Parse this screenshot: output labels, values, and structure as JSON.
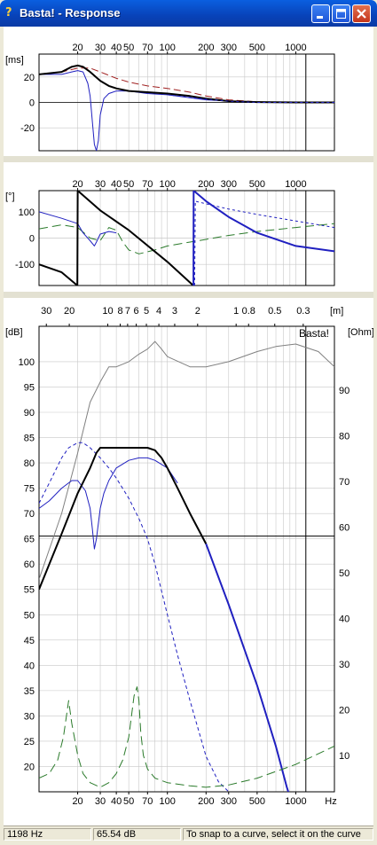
{
  "window": {
    "title": "Basta! - Response",
    "app_icon": "question-mark-icon"
  },
  "title_buttons": [
    "minimize-icon",
    "maximize-icon",
    "close-icon"
  ],
  "status": {
    "frequency": "1198 Hz",
    "level": "65.54 dB",
    "hint": "To snap to a curve, select it on the curve"
  },
  "chart_data": [
    {
      "type": "line",
      "ylabel": "[ms]",
      "xscale": "log",
      "xlim": [
        10,
        2000
      ],
      "ylim": [
        -38,
        38
      ],
      "x_ticks": [
        20,
        30,
        40,
        50,
        70,
        100,
        200,
        300,
        500,
        1000
      ],
      "y_ticks": [
        20,
        0,
        -20
      ],
      "grid": true,
      "series": [
        {
          "color": "#a02020",
          "dash": "8,4",
          "width": 1,
          "x": [
            10,
            15,
            20,
            25,
            30,
            40,
            50,
            70,
            100,
            150,
            200,
            300,
            500,
            1000,
            2000
          ],
          "y": [
            22,
            24,
            27,
            27,
            24,
            19,
            16,
            13,
            11,
            8,
            5,
            2,
            0.5,
            0,
            0
          ]
        },
        {
          "color": "#2020c0",
          "dash": "",
          "width": 1,
          "x": [
            10,
            15,
            18,
            20,
            22,
            24,
            25,
            26,
            27,
            28,
            29,
            30,
            32,
            35,
            40,
            50,
            70,
            100,
            200,
            500,
            2000
          ],
          "y": [
            22,
            22,
            24,
            25,
            24,
            15,
            5,
            -15,
            -33,
            -38,
            -30,
            -10,
            3,
            7,
            9,
            9,
            7,
            6,
            2,
            0,
            0
          ]
        },
        {
          "color": "#000000",
          "dash": "",
          "width": 2,
          "x": [
            10,
            15,
            18,
            20,
            22,
            25,
            30,
            35,
            40,
            50,
            70,
            100,
            150,
            200,
            300,
            500,
            1000,
            2000
          ],
          "y": [
            22,
            24,
            28,
            29,
            28,
            24,
            17,
            13,
            11,
            9,
            8,
            7,
            5,
            3,
            1,
            0.3,
            0,
            0
          ]
        },
        {
          "color": "#2020c0",
          "dash": "3,3",
          "width": 1,
          "x": [
            100,
            150,
            200,
            300,
            500,
            1000,
            2000
          ],
          "y": [
            6,
            4,
            2.5,
            1,
            0,
            0,
            0
          ]
        }
      ]
    },
    {
      "type": "line",
      "ylabel": "[°]",
      "xscale": "log",
      "xlim": [
        10,
        2000
      ],
      "ylim": [
        -180,
        180
      ],
      "x_ticks": [
        20,
        30,
        40,
        50,
        70,
        100,
        200,
        300,
        500,
        1000
      ],
      "y_ticks": [
        100,
        0,
        -100
      ],
      "grid": true,
      "series": [
        {
          "color": "#2a7a2a",
          "dash": "10,5",
          "width": 1,
          "x": [
            10,
            15,
            20,
            25,
            30,
            35,
            40,
            45,
            50,
            60,
            80,
            100,
            150,
            200,
            300,
            500,
            1000,
            2000
          ],
          "y": [
            35,
            50,
            40,
            0,
            -10,
            40,
            30,
            -15,
            -45,
            -60,
            -45,
            -30,
            -15,
            -5,
            10,
            25,
            40,
            55
          ]
        },
        {
          "color": "#2020c0",
          "dash": "",
          "width": 1,
          "x": [
            10,
            15,
            20,
            22,
            25,
            27,
            28,
            30,
            35,
            40
          ],
          "y": [
            100,
            75,
            55,
            20,
            -10,
            -30,
            -15,
            15,
            25,
            20
          ]
        },
        {
          "color": "#000000",
          "dash": "",
          "width": 2,
          "x": [
            10,
            15,
            19.9,
            20,
            30,
            50,
            100,
            159
          ],
          "y": [
            -100,
            -130,
            -180,
            180,
            105,
            30,
            -90,
            -180
          ]
        },
        {
          "color": "#2020c0",
          "dash": "",
          "width": 2,
          "x": [
            159.5,
            160,
            200,
            300,
            500,
            1000,
            2000
          ],
          "y": [
            -180,
            180,
            140,
            80,
            20,
            -30,
            -50
          ]
        },
        {
          "color": "#2020c0",
          "dash": "3,3",
          "width": 1,
          "x": [
            163,
            165,
            200,
            300,
            500,
            1000,
            2000
          ],
          "y": [
            -180,
            140,
            130,
            110,
            90,
            65,
            40
          ]
        }
      ]
    },
    {
      "type": "line",
      "ylabel": "[dB]",
      "y2label": "[Ohm]",
      "x2label": "[m]",
      "xlabel": "Hz",
      "watermark": "Basta!",
      "xscale": "log",
      "xlim": [
        10,
        2000
      ],
      "ylim": [
        15,
        107
      ],
      "y2lim": [
        2,
        104
      ],
      "x_ticks": [
        20,
        30,
        40,
        50,
        70,
        100,
        200,
        300,
        500,
        1000
      ],
      "top_ticks": [
        {
          "label": "30",
          "hz": 11.4
        },
        {
          "label": "20",
          "hz": 17.2
        },
        {
          "label": "10",
          "hz": 34.3
        },
        {
          "label": "8",
          "hz": 42.9
        },
        {
          "label": "7",
          "hz": 49
        },
        {
          "label": "6",
          "hz": 57.2
        },
        {
          "label": "5",
          "hz": 68.6
        },
        {
          "label": "4",
          "hz": 85.8
        },
        {
          "label": "3",
          "hz": 114
        },
        {
          "label": "2",
          "hz": 172
        },
        {
          "label": "1",
          "hz": 343
        },
        {
          "label": "0.8",
          "hz": 429
        },
        {
          "label": "0.5",
          "hz": 686
        },
        {
          "label": "0.3",
          "hz": 1143
        }
      ],
      "y_ticks": [
        100,
        95,
        90,
        85,
        80,
        75,
        70,
        65,
        60,
        55,
        50,
        45,
        40,
        35,
        30,
        25,
        20
      ],
      "y2_ticks": [
        90,
        80,
        70,
        60,
        50,
        40,
        30,
        20,
        10
      ],
      "grid": true,
      "markers": {
        "vline_hz": 1198,
        "hline_db": 65.54
      },
      "series": [
        {
          "color": "#808080",
          "dash": "",
          "width": 1,
          "axis": "left",
          "x": [
            10,
            15,
            20,
            25,
            30,
            35,
            40,
            50,
            60,
            70,
            80,
            90,
            100,
            150,
            200,
            300,
            500,
            700,
            1000,
            1500,
            2000
          ],
          "y": [
            57,
            70,
            82,
            92,
            96,
            99,
            99,
            100,
            101.5,
            102.5,
            104,
            102.5,
            101,
            99,
            99,
            100,
            102,
            103,
            103.5,
            102,
            99
          ]
        },
        {
          "color": "#2020c0",
          "dash": "4,3",
          "width": 1,
          "axis": "left",
          "x": [
            10,
            12,
            15,
            17,
            20,
            22,
            25,
            30,
            35,
            40,
            50,
            60,
            70,
            80,
            100,
            120,
            150,
            200,
            250,
            300
          ],
          "y": [
            72,
            76,
            81,
            83,
            84,
            84,
            83,
            81,
            79,
            77,
            73,
            69,
            65,
            60,
            50,
            42,
            33,
            22,
            17,
            15
          ]
        },
        {
          "color": "#2020c0",
          "dash": "",
          "width": 1,
          "axis": "left",
          "x": [
            10,
            12,
            15,
            18,
            20,
            23,
            25,
            26,
            27,
            28,
            30,
            32,
            35,
            40,
            50,
            60,
            70,
            80,
            100,
            120
          ],
          "y": [
            71,
            72.5,
            75,
            76.5,
            76.5,
            74.5,
            71,
            67,
            63,
            65,
            71,
            74,
            76.5,
            79,
            80.5,
            81,
            81,
            80.5,
            79,
            76
          ]
        },
        {
          "color": "#000000",
          "dash": "",
          "width": 2,
          "axis": "left",
          "x": [
            10,
            15,
            20,
            25,
            28,
            30,
            40,
            50,
            60,
            70,
            80,
            90,
            100,
            120,
            150,
            200
          ],
          "y": [
            55,
            66,
            74,
            79,
            82,
            83,
            83,
            83,
            83,
            83,
            82.5,
            81,
            79,
            75,
            70,
            64
          ]
        },
        {
          "color": "#2020c0",
          "dash": "",
          "width": 2,
          "axis": "left",
          "x": [
            200,
            300,
            500,
            700,
            850,
            900
          ],
          "y": [
            64,
            52,
            36,
            24,
            16,
            14
          ]
        },
        {
          "color": "#2a7a2a",
          "dash": "10,5",
          "width": 1,
          "axis": "right",
          "x": [
            10,
            12,
            14,
            15.5,
            17,
            18,
            20,
            22,
            25,
            30,
            35,
            40,
            45,
            50,
            55,
            58,
            60,
            62,
            65,
            70,
            80,
            100,
            150,
            200,
            300,
            500,
            1000,
            2000
          ],
          "y": [
            5,
            6,
            9,
            14,
            22,
            17,
            10,
            6,
            4,
            3,
            4,
            6,
            9,
            14,
            23,
            25,
            22,
            15,
            10,
            7,
            5,
            4,
            3.3,
            3,
            3.5,
            5,
            8,
            12
          ]
        }
      ]
    }
  ]
}
